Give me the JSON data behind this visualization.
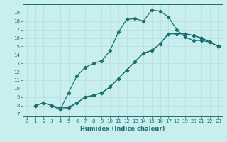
{
  "xlabel": "Humidex (Indice chaleur)",
  "bg_color": "#c8eeee",
  "grid_color": "#b8e0e0",
  "line_color": "#1a7070",
  "xlim": [
    -0.5,
    23.5
  ],
  "ylim": [
    6.7,
    20.0
  ],
  "xticks": [
    0,
    1,
    2,
    3,
    4,
    5,
    6,
    7,
    8,
    9,
    10,
    11,
    12,
    13,
    14,
    15,
    16,
    17,
    18,
    19,
    20,
    21,
    22,
    23
  ],
  "yticks": [
    7,
    8,
    9,
    10,
    11,
    12,
    13,
    14,
    15,
    16,
    17,
    18,
    19
  ],
  "line1_x": [
    1,
    2,
    3,
    4,
    5,
    6,
    7,
    8,
    9,
    10,
    11,
    12,
    13,
    14,
    15,
    16,
    17,
    18,
    19,
    20,
    21,
    22,
    23
  ],
  "line1_y": [
    8.0,
    8.3,
    8.0,
    7.5,
    9.5,
    11.5,
    12.5,
    13.0,
    13.3,
    14.5,
    16.7,
    18.2,
    18.3,
    18.0,
    19.3,
    19.2,
    18.5,
    17.0,
    16.1,
    15.7,
    15.7,
    15.5,
    15.0
  ],
  "line2_x": [
    1,
    2,
    3,
    4,
    5,
    6,
    7,
    8,
    9,
    10,
    11,
    12,
    13,
    14,
    15,
    16,
    17,
    18,
    19,
    20,
    21,
    22,
    23
  ],
  "line2_y": [
    8.0,
    8.3,
    8.0,
    7.5,
    7.7,
    8.3,
    9.0,
    9.2,
    9.5,
    10.2,
    11.2,
    12.2,
    13.2,
    14.2,
    14.5,
    15.3,
    16.5,
    16.5,
    16.5,
    16.3,
    16.0,
    15.5,
    15.0
  ],
  "line3_x": [
    3,
    4,
    5,
    6,
    7,
    8,
    9,
    10,
    11,
    12,
    13,
    14,
    15,
    16,
    17,
    18,
    19,
    20,
    21,
    22,
    23
  ],
  "line3_y": [
    8.0,
    7.7,
    7.8,
    8.3,
    9.0,
    9.2,
    9.5,
    10.2,
    11.2,
    12.2,
    13.2,
    14.2,
    14.5,
    15.3,
    16.5,
    16.5,
    16.5,
    16.3,
    16.0,
    15.5,
    15.0
  ]
}
